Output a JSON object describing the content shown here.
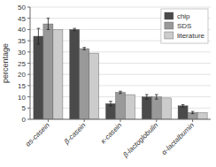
{
  "chart_data": {
    "type": "bar",
    "categories": [
      "αs-casein",
      "β-casein",
      "κ-casein",
      "β-lactoglobulin",
      "α-lactalbumin"
    ],
    "series": [
      {
        "name": "chip",
        "color": "#4a4a4a",
        "values": [
          37.0,
          40.0,
          7.0,
          10.0,
          6.0
        ],
        "errors": [
          3.5,
          0.5,
          1.0,
          1.0,
          0.5
        ]
      },
      {
        "name": "SDS",
        "color": "#999999",
        "values": [
          42.5,
          31.5,
          12.0,
          10.0,
          3.0
        ],
        "errors": [
          2.5,
          0.5,
          0.5,
          1.0,
          0.5
        ]
      },
      {
        "name": "literature",
        "color": "#cccccc",
        "values": [
          40.0,
          29.5,
          11.0,
          9.5,
          3.0
        ]
      }
    ],
    "y_label": "percentage",
    "ylim": [
      0,
      50
    ],
    "yticks": [
      0,
      5,
      10,
      15,
      20,
      25,
      30,
      35,
      40,
      45,
      50
    ],
    "grid": true,
    "legend": "upper right"
  }
}
